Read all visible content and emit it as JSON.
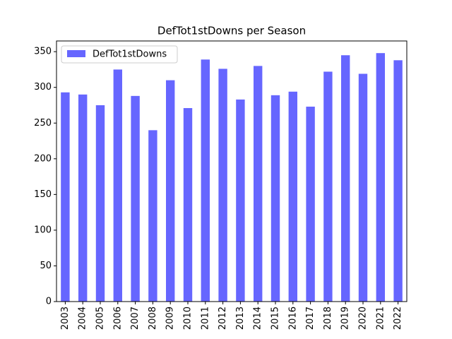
{
  "chart_data": {
    "type": "bar",
    "title": "DefTot1stDowns per Season",
    "categories": [
      "2003",
      "2004",
      "2005",
      "2006",
      "2007",
      "2008",
      "2009",
      "2010",
      "2011",
      "2012",
      "2013",
      "2014",
      "2015",
      "2016",
      "2017",
      "2018",
      "2019",
      "2020",
      "2021",
      "2022"
    ],
    "series": [
      {
        "name": "DefTot1stDowns",
        "color": "#6666ff",
        "values": [
          293,
          290,
          275,
          325,
          288,
          240,
          310,
          271,
          339,
          326,
          283,
          330,
          289,
          294,
          273,
          322,
          345,
          319,
          348,
          338
        ]
      }
    ],
    "ylim": [
      0,
      365
    ],
    "yticks": [
      0,
      50,
      100,
      150,
      200,
      250,
      300,
      350
    ],
    "legend": "upper left"
  }
}
